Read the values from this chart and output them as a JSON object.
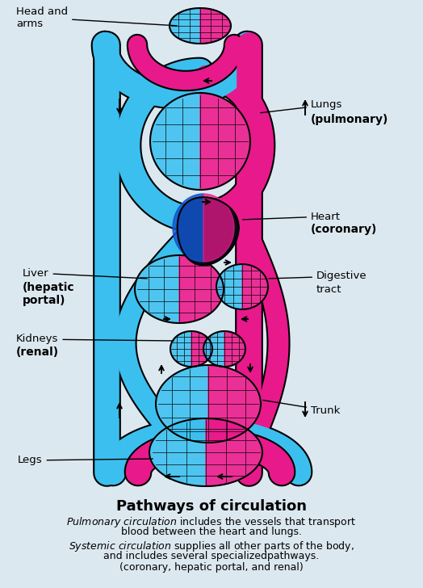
{
  "title": "Pathways of circulation",
  "blue": "#3bbfef",
  "pink": "#e8198b",
  "dark": "#1a1a2e",
  "bg": "#dce8f0",
  "lw_outer": 22,
  "lw_inner": 14,
  "labels": {
    "head_arms": "Head and\narms",
    "lungs": "Lungs\n(pulmonary)",
    "heart": "Heart\n(coronary)",
    "liver": "Liver\n(hepatic\nportal)",
    "digestive": "Digestive\ntract",
    "kidneys": "Kidneys\n(renal)",
    "trunk": "Trunk",
    "legs": "Legs"
  }
}
